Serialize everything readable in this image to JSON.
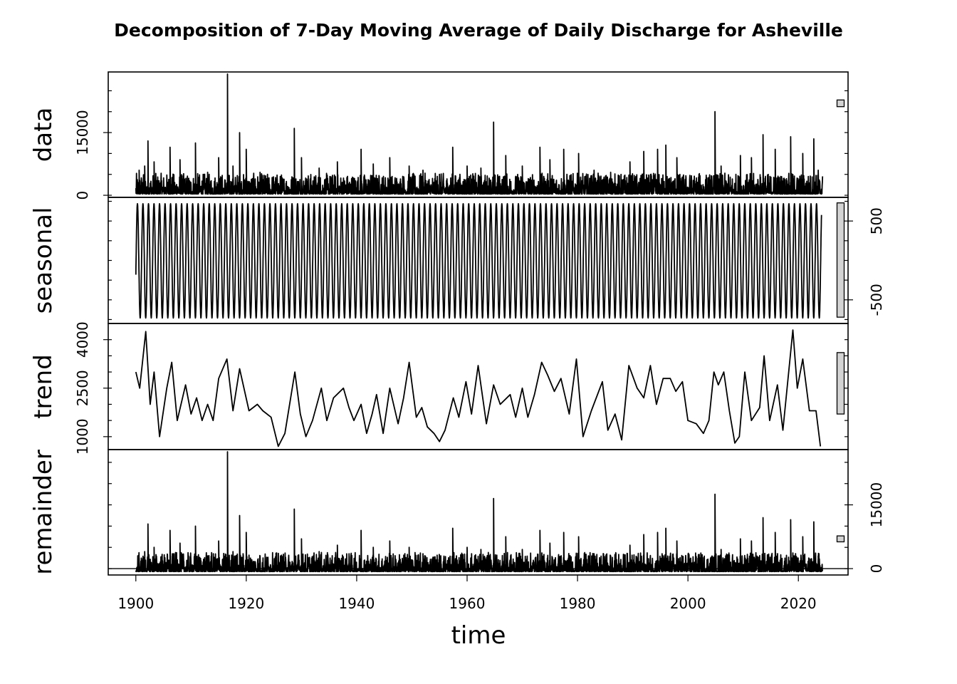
{
  "chart_data": {
    "type": "line",
    "title": "Decomposition of 7-Day Moving Average of Daily Discharge for Asheville",
    "xlabel": "time",
    "xlim": [
      1895,
      2029
    ],
    "x_ticks": [
      1900,
      1920,
      1940,
      1960,
      1980,
      2000,
      2020
    ],
    "x_tick_labels": [
      "1900",
      "1920",
      "1940",
      "1960",
      "1980",
      "2000",
      "2020"
    ],
    "grid": false,
    "panels": [
      {
        "name": "data",
        "ylabel": "data",
        "ylim": [
          -500,
          29500
        ],
        "y_ticks": [
          0,
          15000
        ],
        "y_tick_labels": [
          "0",
          "15000"
        ],
        "minor_step": 5000,
        "tick_side": "left",
        "scale_bar": [
          21200,
          22800
        ],
        "spikes": [
          [
            1900.6,
            6000
          ],
          [
            1901.6,
            7000
          ],
          [
            1902.2,
            13000
          ],
          [
            1903.3,
            8000
          ],
          [
            1906.2,
            11500
          ],
          [
            1908.0,
            8500
          ],
          [
            1910.8,
            12500
          ],
          [
            1913.0,
            5500
          ],
          [
            1915.0,
            9000
          ],
          [
            1916.6,
            29000
          ],
          [
            1917.6,
            7000
          ],
          [
            1918.8,
            15000
          ],
          [
            1920.0,
            11000
          ],
          [
            1922.5,
            5500
          ],
          [
            1928.7,
            16000
          ],
          [
            1930.0,
            9000
          ],
          [
            1933.2,
            6500
          ],
          [
            1936.5,
            8000
          ],
          [
            1940.8,
            11000
          ],
          [
            1943.0,
            7500
          ],
          [
            1946.0,
            9000
          ],
          [
            1949.5,
            7000
          ],
          [
            1952.0,
            6000
          ],
          [
            1955.0,
            5000
          ],
          [
            1957.4,
            11500
          ],
          [
            1960.0,
            7000
          ],
          [
            1962.5,
            6500
          ],
          [
            1964.8,
            17500
          ],
          [
            1967.0,
            9500
          ],
          [
            1970.0,
            7000
          ],
          [
            1973.2,
            11500
          ],
          [
            1975.0,
            8500
          ],
          [
            1977.5,
            11000
          ],
          [
            1980.2,
            10000
          ],
          [
            1983.0,
            6000
          ],
          [
            1986.0,
            5500
          ],
          [
            1989.5,
            8000
          ],
          [
            1992.0,
            10500
          ],
          [
            1994.5,
            11000
          ],
          [
            1996.0,
            12000
          ],
          [
            1998.0,
            9000
          ],
          [
            2002.0,
            5000
          ],
          [
            2004.9,
            20000
          ],
          [
            2006.0,
            7000
          ],
          [
            2009.5,
            9500
          ],
          [
            2011.5,
            9000
          ],
          [
            2013.6,
            14500
          ],
          [
            2015.8,
            11000
          ],
          [
            2018.6,
            14000
          ],
          [
            2020.8,
            10000
          ],
          [
            2022.8,
            13500
          ],
          [
            2023.6,
            6000
          ]
        ]
      },
      {
        "name": "seasonal",
        "ylabel": "seasonal",
        "ylim": [
          -800,
          800
        ],
        "y_ticks": [
          -500,
          500
        ],
        "y_tick_labels": [
          "-500",
          "500"
        ],
        "minor_step": 250,
        "tick_side": "right",
        "scale_bar": [
          -720,
          730
        ],
        "amplitude_low": -730,
        "amplitude_high": 720,
        "period_years": 1
      },
      {
        "name": "trend",
        "ylabel": "trend",
        "ylim": [
          600,
          4500
        ],
        "y_ticks": [
          1000,
          2500,
          4000
        ],
        "y_tick_labels": [
          "1000",
          "2500",
          "4000"
        ],
        "minor_step": 500,
        "tick_side": "left",
        "scale_bar": [
          1700,
          3600
        ],
        "values": [
          [
            1900.0,
            3000
          ],
          [
            1900.7,
            2500
          ],
          [
            1901.8,
            4250
          ],
          [
            1902.6,
            2000
          ],
          [
            1903.3,
            3000
          ],
          [
            1904.3,
            1000
          ],
          [
            1905.6,
            2500
          ],
          [
            1906.5,
            3300
          ],
          [
            1907.5,
            1500
          ],
          [
            1909.0,
            2600
          ],
          [
            1910.0,
            1700
          ],
          [
            1911.0,
            2200
          ],
          [
            1912.0,
            1500
          ],
          [
            1913.0,
            2000
          ],
          [
            1914.0,
            1500
          ],
          [
            1915.0,
            2800
          ],
          [
            1916.5,
            3400
          ],
          [
            1917.6,
            1800
          ],
          [
            1918.8,
            3100
          ],
          [
            1920.5,
            1800
          ],
          [
            1922.0,
            2000
          ],
          [
            1923.0,
            1800
          ],
          [
            1924.5,
            1600
          ],
          [
            1925.8,
            700
          ],
          [
            1927.0,
            1100
          ],
          [
            1928.8,
            3000
          ],
          [
            1929.8,
            1700
          ],
          [
            1930.8,
            1000
          ],
          [
            1932.0,
            1500
          ],
          [
            1933.6,
            2500
          ],
          [
            1934.6,
            1500
          ],
          [
            1935.8,
            2200
          ],
          [
            1937.6,
            2500
          ],
          [
            1938.6,
            1900
          ],
          [
            1939.5,
            1500
          ],
          [
            1940.8,
            2000
          ],
          [
            1941.8,
            1100
          ],
          [
            1942.8,
            1700
          ],
          [
            1943.6,
            2300
          ],
          [
            1944.8,
            1100
          ],
          [
            1946.0,
            2500
          ],
          [
            1947.5,
            1400
          ],
          [
            1948.5,
            2200
          ],
          [
            1949.5,
            3300
          ],
          [
            1950.8,
            1600
          ],
          [
            1951.8,
            1900
          ],
          [
            1952.8,
            1300
          ],
          [
            1954.0,
            1100
          ],
          [
            1955.0,
            850
          ],
          [
            1956.0,
            1200
          ],
          [
            1957.5,
            2200
          ],
          [
            1958.5,
            1600
          ],
          [
            1959.8,
            2700
          ],
          [
            1960.8,
            1700
          ],
          [
            1962.0,
            3200
          ],
          [
            1963.5,
            1400
          ],
          [
            1964.8,
            2600
          ],
          [
            1966.0,
            2000
          ],
          [
            1967.8,
            2300
          ],
          [
            1968.8,
            1600
          ],
          [
            1970.0,
            2500
          ],
          [
            1971.0,
            1600
          ],
          [
            1972.2,
            2300
          ],
          [
            1973.5,
            3300
          ],
          [
            1974.6,
            2900
          ],
          [
            1975.8,
            2400
          ],
          [
            1977.0,
            2800
          ],
          [
            1978.5,
            1700
          ],
          [
            1979.8,
            3400
          ],
          [
            1981.0,
            1000
          ],
          [
            1982.5,
            1800
          ],
          [
            1984.5,
            2700
          ],
          [
            1985.5,
            1200
          ],
          [
            1986.8,
            1700
          ],
          [
            1988.0,
            900
          ],
          [
            1989.3,
            3200
          ],
          [
            1990.8,
            2500
          ],
          [
            1992.0,
            2200
          ],
          [
            1993.2,
            3200
          ],
          [
            1994.3,
            2000
          ],
          [
            1995.5,
            2800
          ],
          [
            1996.8,
            2800
          ],
          [
            1997.8,
            2400
          ],
          [
            1999.0,
            2700
          ],
          [
            2000.0,
            1500
          ],
          [
            2001.5,
            1400
          ],
          [
            2002.8,
            1100
          ],
          [
            2003.8,
            1500
          ],
          [
            2004.7,
            3000
          ],
          [
            2005.5,
            2600
          ],
          [
            2006.5,
            3000
          ],
          [
            2007.5,
            1800
          ],
          [
            2008.5,
            800
          ],
          [
            2009.3,
            1000
          ],
          [
            2010.3,
            3000
          ],
          [
            2011.5,
            1500
          ],
          [
            2013.0,
            1900
          ],
          [
            2013.8,
            3500
          ],
          [
            2014.8,
            1500
          ],
          [
            2016.2,
            2600
          ],
          [
            2017.2,
            1200
          ],
          [
            2019.0,
            4300
          ],
          [
            2019.8,
            2500
          ],
          [
            2020.8,
            3400
          ],
          [
            2022.0,
            1800
          ],
          [
            2023.2,
            1800
          ],
          [
            2024.0,
            700
          ]
        ]
      },
      {
        "name": "remainder",
        "ylabel": "remainder",
        "ylim": [
          -1500,
          28000
        ],
        "y_ticks": [
          0,
          15000
        ],
        "y_tick_labels": [
          "0",
          "15000"
        ],
        "minor_step": 5000,
        "tick_side": "right",
        "baseline": 0,
        "scale_bar": [
          6300,
          7700
        ],
        "spikes": [
          [
            1900.6,
            2500
          ],
          [
            1901.6,
            4000
          ],
          [
            1902.2,
            10500
          ],
          [
            1903.3,
            5000
          ],
          [
            1906.2,
            9000
          ],
          [
            1908.0,
            6000
          ],
          [
            1910.8,
            10000
          ],
          [
            1913.0,
            3000
          ],
          [
            1915.0,
            6500
          ],
          [
            1916.6,
            27500
          ],
          [
            1917.6,
            4000
          ],
          [
            1918.8,
            12500
          ],
          [
            1920.0,
            8500
          ],
          [
            1922.5,
            3000
          ],
          [
            1928.7,
            14000
          ],
          [
            1930.0,
            7000
          ],
          [
            1933.2,
            4000
          ],
          [
            1936.5,
            5500
          ],
          [
            1940.8,
            9000
          ],
          [
            1943.0,
            5000
          ],
          [
            1946.0,
            6500
          ],
          [
            1949.5,
            5000
          ],
          [
            1952.0,
            3500
          ],
          [
            1955.0,
            2500
          ],
          [
            1957.4,
            9500
          ],
          [
            1960.0,
            5000
          ],
          [
            1962.5,
            4500
          ],
          [
            1964.8,
            16500
          ],
          [
            1967.0,
            7500
          ],
          [
            1970.0,
            4500
          ],
          [
            1973.2,
            9000
          ],
          [
            1975.0,
            6000
          ],
          [
            1977.5,
            8500
          ],
          [
            1980.2,
            7500
          ],
          [
            1983.0,
            3500
          ],
          [
            1986.0,
            3000
          ],
          [
            1989.5,
            5500
          ],
          [
            1992.0,
            8000
          ],
          [
            1994.5,
            8500
          ],
          [
            1996.0,
            9500
          ],
          [
            1998.0,
            6500
          ],
          [
            2002.0,
            2500
          ],
          [
            2004.9,
            17500
          ],
          [
            2006.0,
            4500
          ],
          [
            2009.5,
            7000
          ],
          [
            2011.5,
            6500
          ],
          [
            2013.6,
            12000
          ],
          [
            2015.8,
            8500
          ],
          [
            2018.6,
            11500
          ],
          [
            2020.8,
            7500
          ],
          [
            2022.8,
            11000
          ],
          [
            2023.6,
            3000
          ]
        ]
      }
    ]
  }
}
